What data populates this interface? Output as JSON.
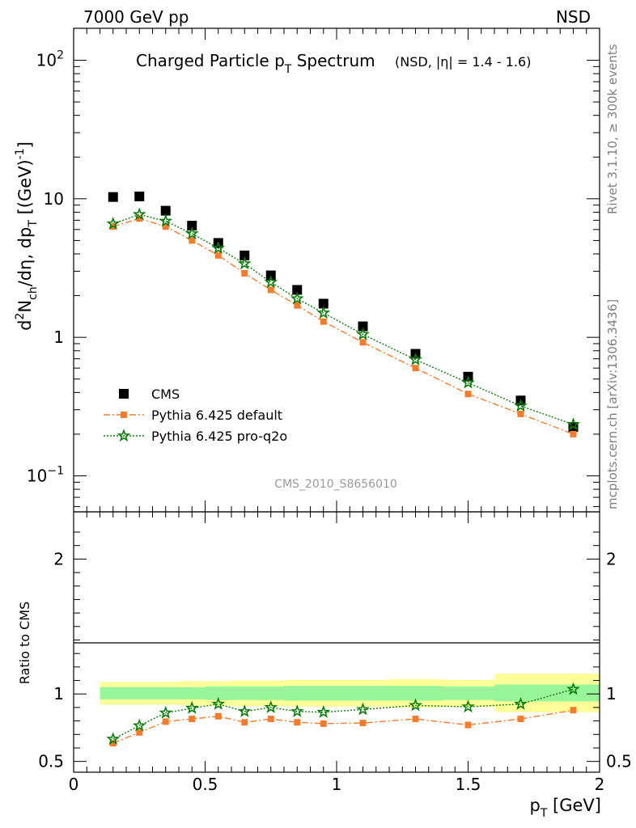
{
  "header": {
    "left": "7000 GeV pp",
    "right": "NSD"
  },
  "side_labels": {
    "rivet": "Rivet 3.1.10, ≥ 300k events",
    "mcplots": "mcplots.cern.ch [arXiv:1306.3436]"
  },
  "watermark": "CMS_2010_S8656010",
  "chart_data": [
    {
      "type": "scatter",
      "panel": "main",
      "title_main": "Charged Particle p",
      "title_sub": "T",
      "title_rest": " Spectrum",
      "title_note": "(NSD, |η| = 1.4 - 1.6)",
      "ylabel_parts": [
        "d",
        "2",
        "N",
        "ch",
        "/dη, dp",
        "T",
        " [(GeV)",
        "-1",
        "]"
      ],
      "y_scale": "log",
      "ylim": [
        0.055,
        170
      ],
      "xlim": [
        0,
        2
      ],
      "y_ticks": [
        {
          "v": 0.1,
          "base": "10",
          "exp": "−1"
        },
        {
          "v": 1,
          "base": "1",
          "exp": ""
        },
        {
          "v": 10,
          "base": "10",
          "exp": ""
        },
        {
          "v": 100,
          "base": "10",
          "exp": "2"
        }
      ],
      "legend_position": "lower-left",
      "series": [
        {
          "name": "CMS",
          "color": "#000000",
          "marker": "square",
          "x": [
            0.15,
            0.25,
            0.35,
            0.45,
            0.55,
            0.65,
            0.75,
            0.85,
            0.95,
            1.1,
            1.3,
            1.5,
            1.7,
            1.9
          ],
          "y": [
            10.3,
            10.4,
            8.2,
            6.4,
            4.8,
            3.9,
            2.8,
            2.2,
            1.75,
            1.2,
            0.76,
            0.52,
            0.35,
            0.225
          ]
        },
        {
          "name": "Pythia 6.425 default",
          "color": "#f47c2c",
          "marker": "square-small",
          "line": "dashdot",
          "x": [
            0.15,
            0.25,
            0.35,
            0.45,
            0.55,
            0.65,
            0.75,
            0.85,
            0.95,
            1.1,
            1.3,
            1.5,
            1.7,
            1.9
          ],
          "y": [
            6.3,
            7.2,
            6.3,
            5.0,
            3.9,
            2.9,
            2.2,
            1.7,
            1.3,
            0.92,
            0.6,
            0.39,
            0.28,
            0.2
          ]
        },
        {
          "name": "Pythia 6.425 pro-q2o",
          "color": "#0a7d0a",
          "marker": "star",
          "line": "dotted",
          "x": [
            0.15,
            0.25,
            0.35,
            0.45,
            0.55,
            0.65,
            0.75,
            0.85,
            0.95,
            1.1,
            1.3,
            1.5,
            1.7,
            1.9
          ],
          "y": [
            6.6,
            7.7,
            6.9,
            5.6,
            4.4,
            3.4,
            2.5,
            1.9,
            1.5,
            1.05,
            0.69,
            0.47,
            0.32,
            0.235
          ]
        }
      ]
    },
    {
      "type": "scatter",
      "panel": "ratio",
      "ylabel": "Ratio to CMS",
      "xlabel_main": "p",
      "xlabel_sub": "T",
      "xlabel_rest": " [GeV]",
      "ylim": [
        0.42,
        2.35
      ],
      "xlim": [
        0,
        2
      ],
      "y_ticks": [
        {
          "v": 0.5,
          "label": "0.5"
        },
        {
          "v": 1,
          "label": "1"
        },
        {
          "v": 2,
          "label": "2"
        }
      ],
      "x_ticks": [
        {
          "v": 0,
          "label": "0"
        },
        {
          "v": 0.5,
          "label": "0.5"
        },
        {
          "v": 1,
          "label": "1"
        },
        {
          "v": 1.5,
          "label": "1.5"
        },
        {
          "v": 2,
          "label": "2"
        }
      ],
      "bands": {
        "edges": [
          0.1,
          0.2,
          0.3,
          0.4,
          0.5,
          0.6,
          0.7,
          0.8,
          0.9,
          1.0,
          1.2,
          1.4,
          1.6,
          1.8,
          2.0
        ],
        "inner_lo": [
          0.96,
          0.96,
          0.96,
          0.96,
          0.955,
          0.955,
          0.955,
          0.95,
          0.95,
          0.95,
          0.95,
          0.955,
          0.945,
          0.945
        ],
        "inner_hi": [
          1.05,
          1.05,
          1.05,
          1.05,
          1.055,
          1.055,
          1.055,
          1.06,
          1.06,
          1.06,
          1.06,
          1.055,
          1.07,
          1.07
        ],
        "outer_lo": [
          0.92,
          0.92,
          0.92,
          0.915,
          0.915,
          0.91,
          0.91,
          0.905,
          0.905,
          0.905,
          0.9,
          0.905,
          0.865,
          0.865
        ],
        "outer_hi": [
          1.09,
          1.09,
          1.09,
          1.095,
          1.095,
          1.1,
          1.1,
          1.105,
          1.105,
          1.105,
          1.11,
          1.105,
          1.15,
          1.15
        ],
        "inner_color": "#99f599",
        "outer_color": "#ffff99"
      },
      "series": [
        {
          "name": "Pythia 6.425 default",
          "color": "#f47c2c",
          "marker": "square-small",
          "line": "dashdot",
          "x": [
            0.15,
            0.25,
            0.35,
            0.45,
            0.55,
            0.65,
            0.75,
            0.85,
            0.95,
            1.1,
            1.3,
            1.5,
            1.7,
            1.9
          ],
          "y": [
            0.635,
            0.715,
            0.795,
            0.815,
            0.835,
            0.79,
            0.815,
            0.79,
            0.78,
            0.785,
            0.815,
            0.77,
            0.815,
            0.88
          ]
        },
        {
          "name": "Pythia 6.425 pro-q2o",
          "color": "#0a7d0a",
          "marker": "star",
          "line": "dotted",
          "x": [
            0.15,
            0.25,
            0.35,
            0.45,
            0.55,
            0.65,
            0.75,
            0.85,
            0.95,
            1.1,
            1.3,
            1.5,
            1.7,
            1.9
          ],
          "y": [
            0.665,
            0.765,
            0.86,
            0.895,
            0.925,
            0.87,
            0.9,
            0.87,
            0.865,
            0.885,
            0.915,
            0.905,
            0.925,
            1.035
          ]
        }
      ]
    }
  ]
}
